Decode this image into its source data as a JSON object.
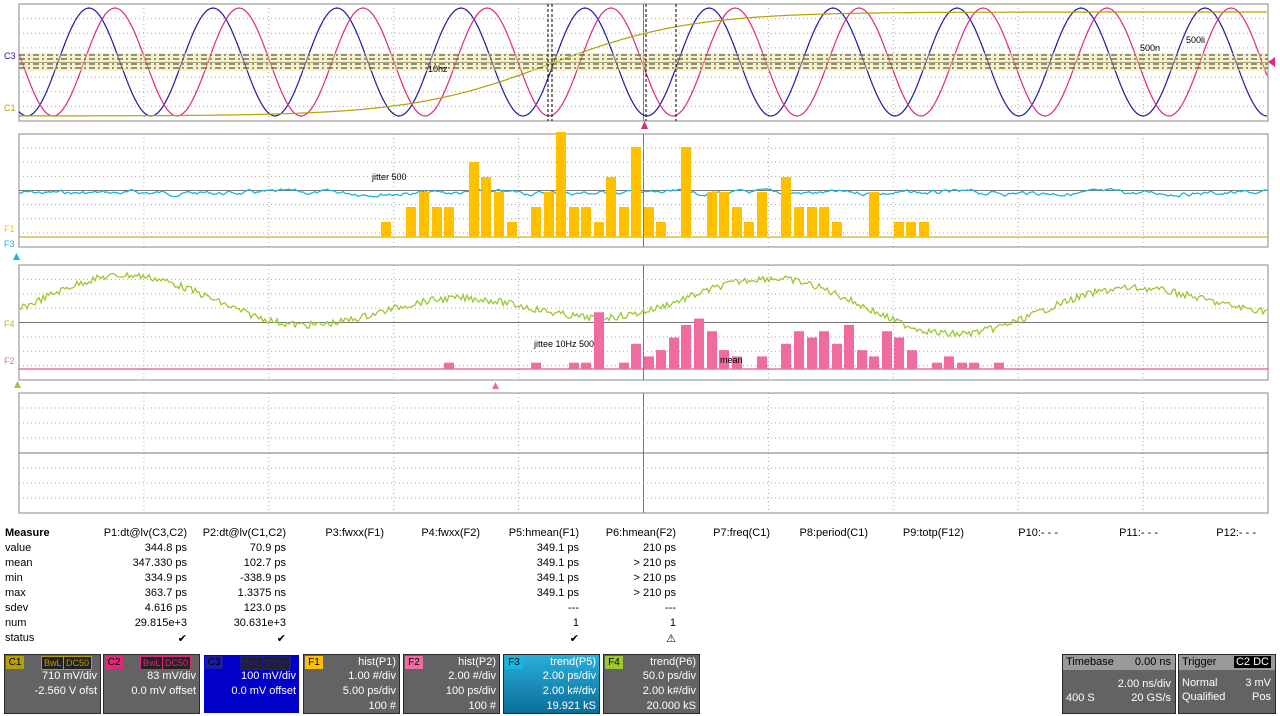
{
  "colors": {
    "c1": "#b4a000",
    "c2": "#e0287a",
    "c3": "#1a1aa8",
    "f1": "#ffc000",
    "f2": "#f06ba0",
    "f3": "#1ab4dc",
    "f4": "#9cc830"
  },
  "traces": {
    "c3": "C3",
    "c1": "C1",
    "f1": "F1",
    "f3": "F3",
    "f4": "F4",
    "f2": "F2",
    "ann_10hz": "10hz",
    "ann_500n": "500n",
    "ann_500li": "500li",
    "ann_jitter": "jitter 500",
    "ann_jittee": "jittee 10Hz 500",
    "ann_mean": "mean"
  },
  "measure": {
    "title": "Measure",
    "rows": [
      "value",
      "mean",
      "min",
      "max",
      "sdev",
      "num",
      "status"
    ],
    "params": [
      {
        "name": "P1:dt@lv(C3,C2)",
        "vals": [
          "344.8 ps",
          "347.330 ps",
          "334.9 ps",
          "363.7 ps",
          "4.616 ps",
          "29.815e+3",
          "✔"
        ]
      },
      {
        "name": "P2:dt@lv(C1,C2)",
        "vals": [
          "70.9 ps",
          "102.7 ps",
          "-338.9 ps",
          "1.3375 ns",
          "123.0 ps",
          "30.631e+3",
          "✔"
        ]
      },
      {
        "name": "P3:fwxx(F1)",
        "vals": [
          "",
          "",
          "",
          "",
          "",
          "",
          ""
        ]
      },
      {
        "name": "P4:fwxx(F2)",
        "vals": [
          "",
          "",
          "",
          "",
          "",
          "",
          ""
        ]
      },
      {
        "name": "P5:hmean(F1)",
        "vals": [
          "349.1 ps",
          "349.1 ps",
          "349.1 ps",
          "349.1 ps",
          "---",
          "1",
          "✔"
        ]
      },
      {
        "name": "P6:hmean(F2)",
        "vals": [
          "210 ps",
          "> 210 ps",
          "> 210 ps",
          "> 210 ps",
          "---",
          "1",
          "⚠"
        ]
      },
      {
        "name": "P7:freq(C1)",
        "vals": [
          "",
          "",
          "",
          "",
          "",
          "",
          ""
        ]
      },
      {
        "name": "P8:period(C1)",
        "vals": [
          "",
          "",
          "",
          "",
          "",
          "",
          ""
        ]
      },
      {
        "name": "P9:totp(F12)",
        "vals": [
          "",
          "",
          "",
          "",
          "",
          "",
          ""
        ]
      },
      {
        "name": "P10:- - -",
        "vals": [
          "",
          "",
          "",
          "",
          "",
          "",
          ""
        ]
      },
      {
        "name": "P11:- - -",
        "vals": [
          "",
          "",
          "",
          "",
          "",
          "",
          ""
        ]
      },
      {
        "name": "P12:- - -",
        "vals": [
          "",
          "",
          "",
          "",
          "",
          "",
          ""
        ]
      }
    ]
  },
  "channels": [
    {
      "label": "C1",
      "tags": [
        "BwL",
        "DC50"
      ],
      "fn": "",
      "l1": "710 mV/div",
      "l2": "-2.560 V ofst",
      "l3": ""
    },
    {
      "label": "C2",
      "tags": [
        "BwL",
        "DC50"
      ],
      "fn": "",
      "l1": "83 mV/div",
      "l2": "0.0 mV offset",
      "l3": ""
    },
    {
      "label": "C3",
      "tags": [
        "BwL",
        "DC50"
      ],
      "fn": "",
      "l1": "100 mV/div",
      "l2": "0.0 mV offset",
      "l3": ""
    },
    {
      "label": "F1",
      "tags": [],
      "fn": "hist(P1)",
      "l1": "1.00 #/div",
      "l2": "5.00 ps/div",
      "l3": "100 #"
    },
    {
      "label": "F2",
      "tags": [],
      "fn": "hist(P2)",
      "l1": "2.00 #/div",
      "l2": "100 ps/div",
      "l3": "100 #"
    },
    {
      "label": "F3",
      "tags": [],
      "fn": "trend(P5)",
      "l1": "2.00 ps/div",
      "l2": "2.00 k#/div",
      "l3": "19.921 kS"
    },
    {
      "label": "F4",
      "tags": [],
      "fn": "trend(P6)",
      "l1": "50.0 ps/div",
      "l2": "2.00 k#/div",
      "l3": "20.000 kS"
    }
  ],
  "timebase": {
    "title": "Timebase",
    "delay": "0.00 ns",
    "tdiv": "2.00 ns/div",
    "samples": "400 S",
    "rate": "20 GS/s"
  },
  "trigger": {
    "title": "Trigger",
    "src": "C2",
    "coupling": "DC",
    "mode": "Normal",
    "level": "3 mV",
    "type": "Qualified",
    "slope": "Pos"
  }
}
